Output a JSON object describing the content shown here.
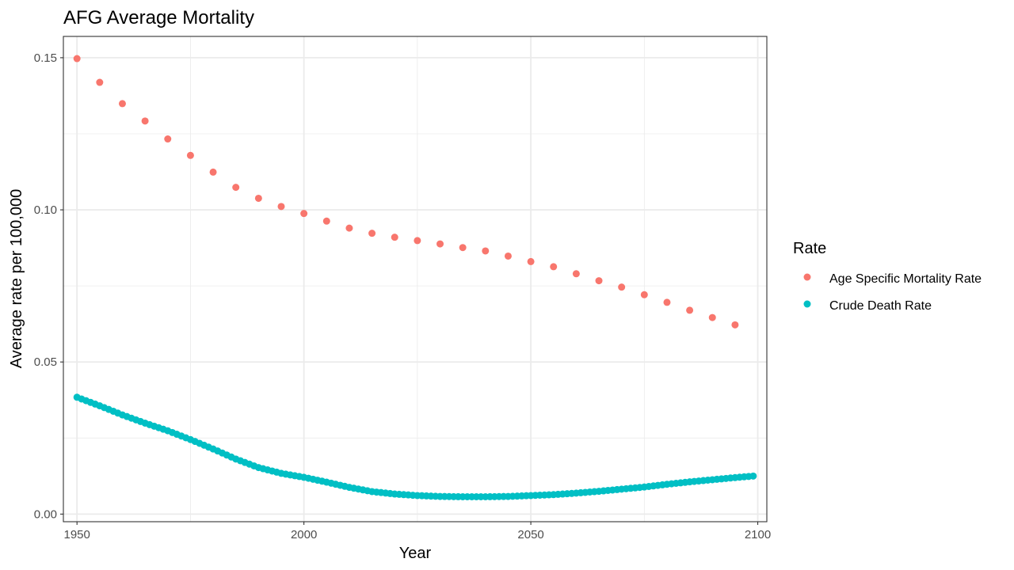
{
  "chart_data": {
    "type": "scatter",
    "title": "AFG Average Mortality",
    "xlabel": "Year",
    "ylabel": "Average rate per 100,000",
    "xlim": [
      1947,
      2102
    ],
    "ylim": [
      -0.0025,
      0.157
    ],
    "x_ticks": [
      1950,
      2000,
      2050,
      2100
    ],
    "x_tick_labels": [
      "1950",
      "2000",
      "2050",
      "2100"
    ],
    "x_minor_ticks": [
      1975,
      2025,
      2075
    ],
    "y_ticks": [
      0.0,
      0.05,
      0.1,
      0.15
    ],
    "y_tick_labels": [
      "0.00",
      "0.05",
      "0.10",
      "0.15"
    ],
    "y_minor_ticks": [
      0.025,
      0.075,
      0.125
    ],
    "grid": true,
    "legend": {
      "title": "Rate",
      "position": "right",
      "entries": [
        "Age Specific Mortality Rate",
        "Crude Death Rate"
      ]
    },
    "series": [
      {
        "name": "Age Specific Mortality Rate",
        "color": "#F8766D",
        "x": [
          1950,
          1955,
          1960,
          1965,
          1970,
          1975,
          1980,
          1985,
          1990,
          1995,
          2000,
          2005,
          2010,
          2015,
          2020,
          2025,
          2030,
          2035,
          2040,
          2045,
          2050,
          2055,
          2060,
          2065,
          2070,
          2075,
          2080,
          2085,
          2090,
          2095
        ],
        "y": [
          0.1497,
          0.1419,
          0.1349,
          0.1292,
          0.1233,
          0.1179,
          0.1124,
          0.1074,
          0.1038,
          0.1011,
          0.0988,
          0.0963,
          0.094,
          0.0923,
          0.091,
          0.0899,
          0.0888,
          0.0876,
          0.0865,
          0.0848,
          0.083,
          0.0813,
          0.079,
          0.0767,
          0.0746,
          0.0721,
          0.0696,
          0.067,
          0.0646,
          0.0622
        ]
      },
      {
        "name": "Crude Death Rate",
        "color": "#00BFC4",
        "x_start": 1950,
        "x_end": 2099,
        "key_x": [
          1950,
          1955,
          1960,
          1965,
          1970,
          1975,
          1980,
          1985,
          1990,
          1995,
          2000,
          2005,
          2010,
          2015,
          2020,
          2025,
          2030,
          2035,
          2040,
          2045,
          2050,
          2055,
          2060,
          2065,
          2070,
          2075,
          2080,
          2085,
          2090,
          2095,
          2099
        ],
        "key_y": [
          0.0384,
          0.0356,
          0.0326,
          0.0299,
          0.0274,
          0.0245,
          0.0214,
          0.0181,
          0.0153,
          0.0134,
          0.0121,
          0.0105,
          0.0088,
          0.0074,
          0.0066,
          0.0061,
          0.0058,
          0.0057,
          0.0057,
          0.0058,
          0.0061,
          0.0064,
          0.0069,
          0.0075,
          0.0082,
          0.0089,
          0.0098,
          0.0106,
          0.0113,
          0.012,
          0.0125
        ]
      }
    ]
  }
}
